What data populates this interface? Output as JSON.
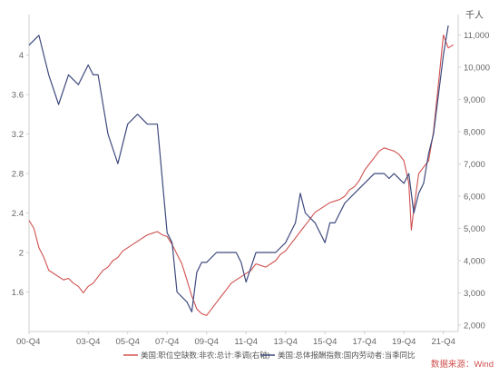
{
  "chart_data": {
    "type": "line",
    "title": "",
    "xlabel": "",
    "left_axis": {
      "label": "",
      "ylim": [
        1.2,
        4.3
      ],
      "ticks": [
        1.6,
        2,
        2.4,
        2.8,
        3.2,
        3.6,
        4
      ],
      "tick_labels": [
        "1.6",
        "2",
        "2.4",
        "2.8",
        "3.2",
        "3.6",
        "4"
      ]
    },
    "right_axis": {
      "label": "千人",
      "ylim": [
        1800,
        11300
      ],
      "ticks": [
        2000,
        3000,
        4000,
        5000,
        6000,
        7000,
        8000,
        9000,
        10000,
        11000
      ],
      "tick_labels": [
        "2,000",
        "3,000",
        "4,000",
        "5,000",
        "6,000",
        "7,000",
        "8,000",
        "9,000",
        "10,000",
        "11,000"
      ]
    },
    "x_axis": {
      "domain": [
        0,
        87
      ],
      "ticks": [
        0,
        12,
        20,
        28,
        36,
        44,
        52,
        60,
        68,
        76,
        84
      ],
      "tick_labels": [
        "00-Q4",
        "03-Q4",
        "05-Q4",
        "07-Q4",
        "09-Q4",
        "11-Q4",
        "13-Q4",
        "15-Q4",
        "17-Q4",
        "19-Q4",
        "21-Q4"
      ]
    },
    "grid": false,
    "legend_position": "bottom",
    "series": [
      {
        "name": "美国:职位空缺数:非农:总计:季调(右轴)",
        "axis": "right",
        "color": "#d0504f",
        "x": [
          0,
          1,
          2,
          3,
          4,
          5,
          6,
          7,
          8,
          9,
          10,
          11,
          12,
          13,
          14,
          15,
          16,
          17,
          18,
          19,
          20,
          21,
          22,
          23,
          24,
          25,
          26,
          27,
          28,
          29,
          30,
          31,
          32,
          33,
          34,
          35,
          36,
          37,
          38,
          39,
          40,
          41,
          42,
          43,
          44,
          45,
          46,
          47,
          48,
          49,
          50,
          51,
          52,
          53,
          54,
          55,
          56,
          57,
          58,
          59,
          60,
          61,
          62,
          63,
          64,
          65,
          66,
          67,
          68,
          69,
          70,
          71,
          72,
          73,
          74,
          75,
          76,
          77,
          77.5,
          78,
          79,
          80,
          81,
          82,
          83,
          84,
          85,
          86
        ],
        "values": [
          5250,
          5000,
          4400,
          4100,
          3700,
          3600,
          3500,
          3400,
          3450,
          3300,
          3200,
          3000,
          3200,
          3300,
          3500,
          3700,
          3800,
          4000,
          4100,
          4300,
          4400,
          4500,
          4600,
          4700,
          4800,
          4850,
          4900,
          4800,
          4750,
          4500,
          4200,
          3900,
          3400,
          2900,
          2500,
          2350,
          2300,
          2500,
          2700,
          2900,
          3100,
          3300,
          3400,
          3500,
          3600,
          3700,
          3900,
          3850,
          3800,
          3900,
          4000,
          4200,
          4300,
          4500,
          4700,
          4900,
          5100,
          5300,
          5500,
          5600,
          5700,
          5800,
          5850,
          5900,
          6000,
          6200,
          6300,
          6500,
          6800,
          7000,
          7200,
          7400,
          7500,
          7450,
          7400,
          7300,
          7100,
          6400,
          4950,
          5600,
          6700,
          6900,
          7100,
          8000,
          9500,
          11000,
          10600,
          10700
        ]
      },
      {
        "name": "美国:总体报酬指数:国内劳动者:当季同比",
        "axis": "left",
        "color": "#3f4a7e",
        "x": [
          0,
          2,
          4,
          6,
          8,
          10,
          12,
          13,
          14,
          16,
          18,
          20,
          22,
          24,
          26,
          28,
          29,
          30,
          32,
          33,
          34,
          35,
          36,
          38,
          40,
          42,
          43,
          44,
          46,
          48,
          50,
          52,
          54,
          55,
          56,
          58,
          60,
          61,
          62,
          64,
          66,
          68,
          70,
          72,
          73,
          74,
          76,
          77,
          78,
          79,
          80,
          81,
          82,
          83,
          84,
          85
        ],
        "values": [
          4.1,
          4.2,
          3.8,
          3.5,
          3.8,
          3.7,
          3.9,
          3.8,
          3.8,
          3.2,
          2.9,
          3.3,
          3.4,
          3.3,
          3.3,
          2.2,
          2.1,
          1.6,
          1.5,
          1.4,
          1.8,
          1.9,
          1.9,
          2.0,
          2.0,
          2.0,
          1.9,
          1.7,
          2.0,
          2.0,
          2.0,
          2.1,
          2.3,
          2.6,
          2.4,
          2.3,
          2.1,
          2.3,
          2.3,
          2.5,
          2.6,
          2.7,
          2.8,
          2.8,
          2.75,
          2.8,
          2.7,
          2.8,
          2.4,
          2.6,
          2.7,
          3.0,
          3.2,
          3.6,
          4.0,
          4.3
        ]
      }
    ]
  },
  "legend": {
    "items": [
      "美国:职位空缺数:非农:总计:季调(右轴)",
      "美国:总体报酬指数:国内劳动者:当季同比"
    ]
  },
  "source": {
    "text": "数据来源：Wind"
  },
  "colors": {
    "axis": "#cfcfcf",
    "tick_text": "#666666",
    "source_text": "#d0504f"
  }
}
